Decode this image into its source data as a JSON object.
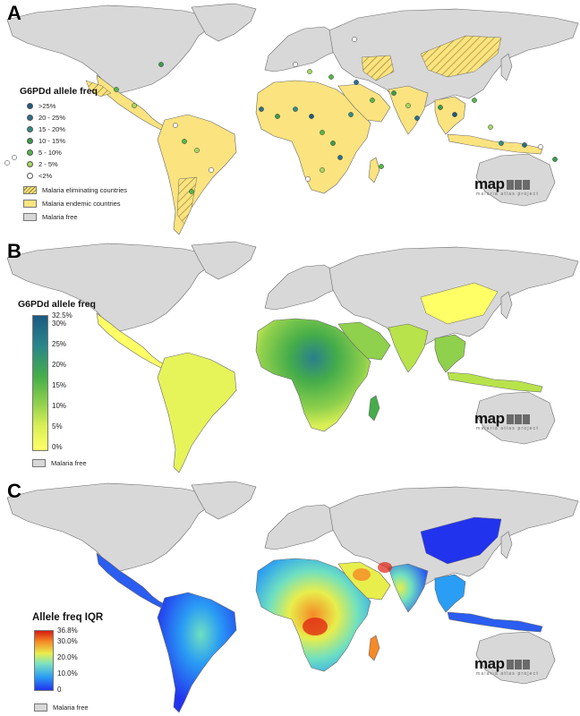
{
  "panels": [
    {
      "letter": "A",
      "legend_title": "G6PDd allele freq",
      "legend_items": [
        {
          "label": ">25%",
          "color": "#1c5a82"
        },
        {
          "label": "20 - 25%",
          "color": "#2a6f8c"
        },
        {
          "label": "15 - 20%",
          "color": "#2f8e86"
        },
        {
          "label": "10 - 15%",
          "color": "#3a9c4c"
        },
        {
          "label": "5 - 10%",
          "color": "#54b84a"
        },
        {
          "label": "2 - 5%",
          "color": "#a6d860"
        },
        {
          "label": "<2%",
          "color": "#ffffff"
        }
      ],
      "area_legend": [
        {
          "label": "Malaria eliminating countries",
          "style": "hatch"
        },
        {
          "label": "Malaria endemic countries",
          "style": "endemic"
        },
        {
          "label": "Malaria free",
          "style": "free"
        }
      ]
    },
    {
      "letter": "B",
      "legend_title": "G6PDd allele freq",
      "ramp_ticks": [
        "32.5%",
        "30%",
        "25%",
        "20%",
        "15%",
        "10%",
        "5%",
        "0%"
      ],
      "footer_label": "Malaria free"
    },
    {
      "letter": "C",
      "legend_title": "Allele freq IQR",
      "ramp_ticks": [
        "36.8%",
        "30.0%",
        "20.0%",
        "10.0%",
        "0"
      ],
      "footer_label": "Malaria free"
    }
  ],
  "logo": {
    "word": "map",
    "subtitle": "malaria atlas project"
  },
  "colors": {
    "ocean": "#ffffff",
    "malaria_free_land": "#d8d8d8",
    "endemic": "#fbe37f",
    "country_border": "#6a6a6a",
    "freq_ramp": [
      "#ffff66",
      "#b8e34a",
      "#5cc242",
      "#2f9e6a",
      "#2a7f8c",
      "#1c5a82"
    ],
    "iqr_ramp": [
      "#2233ee",
      "#2a9df4",
      "#6fe0c0",
      "#e8ee4c",
      "#f79a2a",
      "#e02010"
    ]
  }
}
